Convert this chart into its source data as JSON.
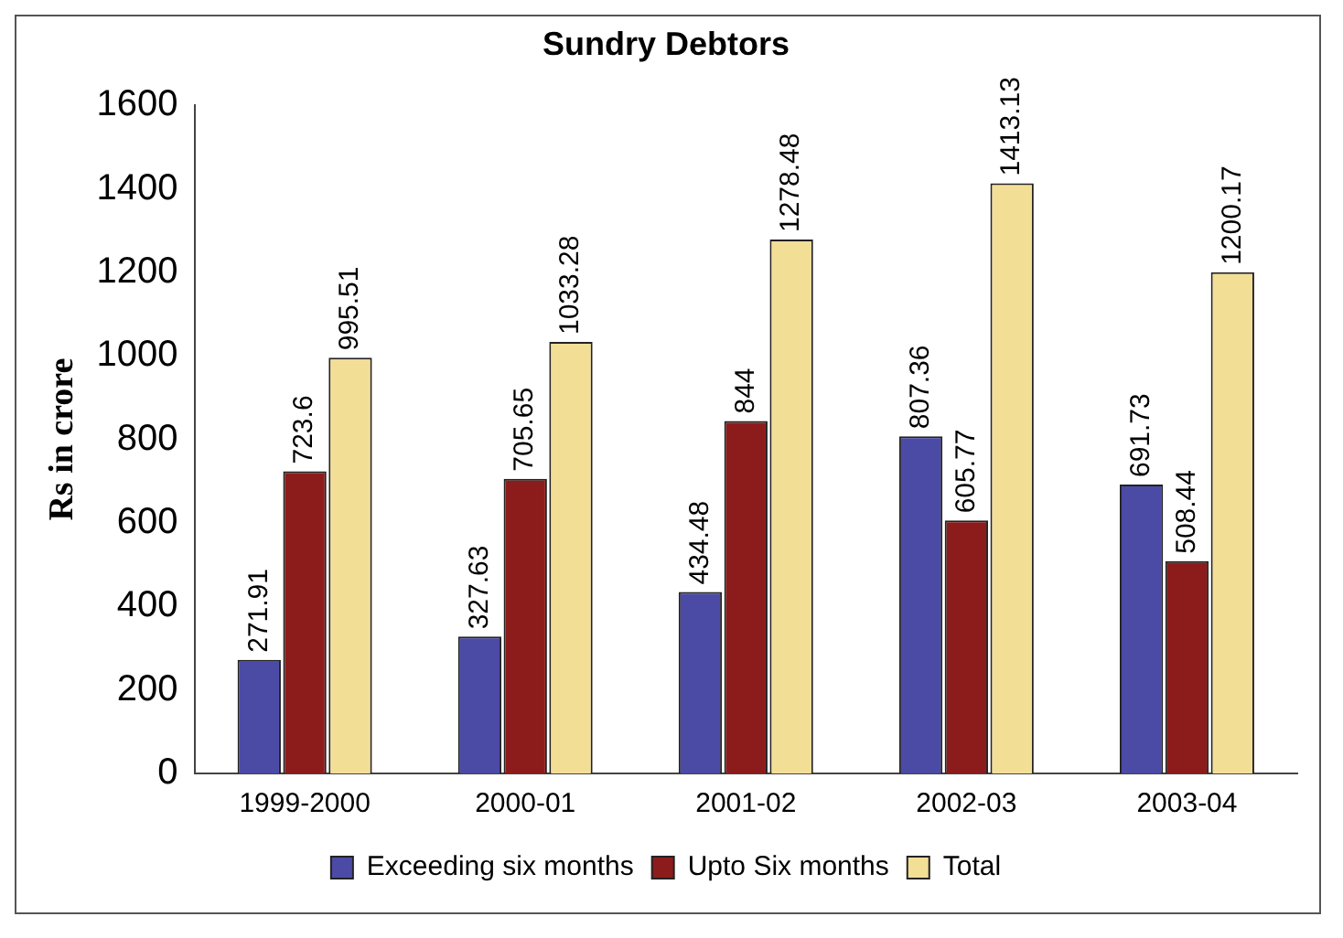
{
  "chart_data": {
    "type": "bar",
    "title": "Sundry Debtors",
    "ylabel": "Rs in crore",
    "categories": [
      "1999-2000",
      "2000-01",
      "2001-02",
      "2002-03",
      "2003-04"
    ],
    "series": [
      {
        "name": "Exceeding six months",
        "color": "#4b4ba6",
        "values": [
          271.91,
          327.63,
          434.48,
          807.36,
          691.73
        ]
      },
      {
        "name": "Upto Six months",
        "color": "#8c1c1c",
        "values": [
          723.6,
          705.65,
          844,
          605.77,
          508.44
        ]
      },
      {
        "name": "Total",
        "color": "#f3de96",
        "values": [
          995.51,
          1033.28,
          1278.48,
          1413.13,
          1200.17
        ]
      }
    ],
    "ylim": [
      0,
      1600
    ],
    "yticks": [
      0,
      200,
      400,
      600,
      800,
      1000,
      1200,
      1400,
      1600
    ],
    "data_labels": true,
    "legend": "bottom",
    "grid": false
  }
}
